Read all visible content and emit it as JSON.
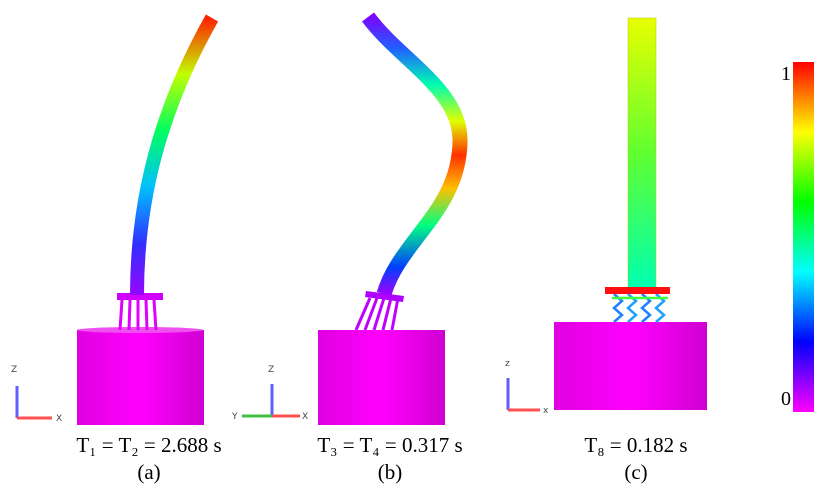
{
  "panels": [
    {
      "period": "T₁ = T₂ = 2.688 s",
      "label": "(a)",
      "axes": [
        "Z",
        "X"
      ]
    },
    {
      "period": "T₃ = T₄ = 0.317 s",
      "label": "(b)",
      "axes": [
        "Z",
        "Y",
        "X"
      ]
    },
    {
      "period": "T₈ = 0.182 s",
      "label": "(c)",
      "axes": [
        "z",
        "x"
      ]
    }
  ],
  "colorbar": {
    "max_label": "1",
    "min_label": "0"
  }
}
